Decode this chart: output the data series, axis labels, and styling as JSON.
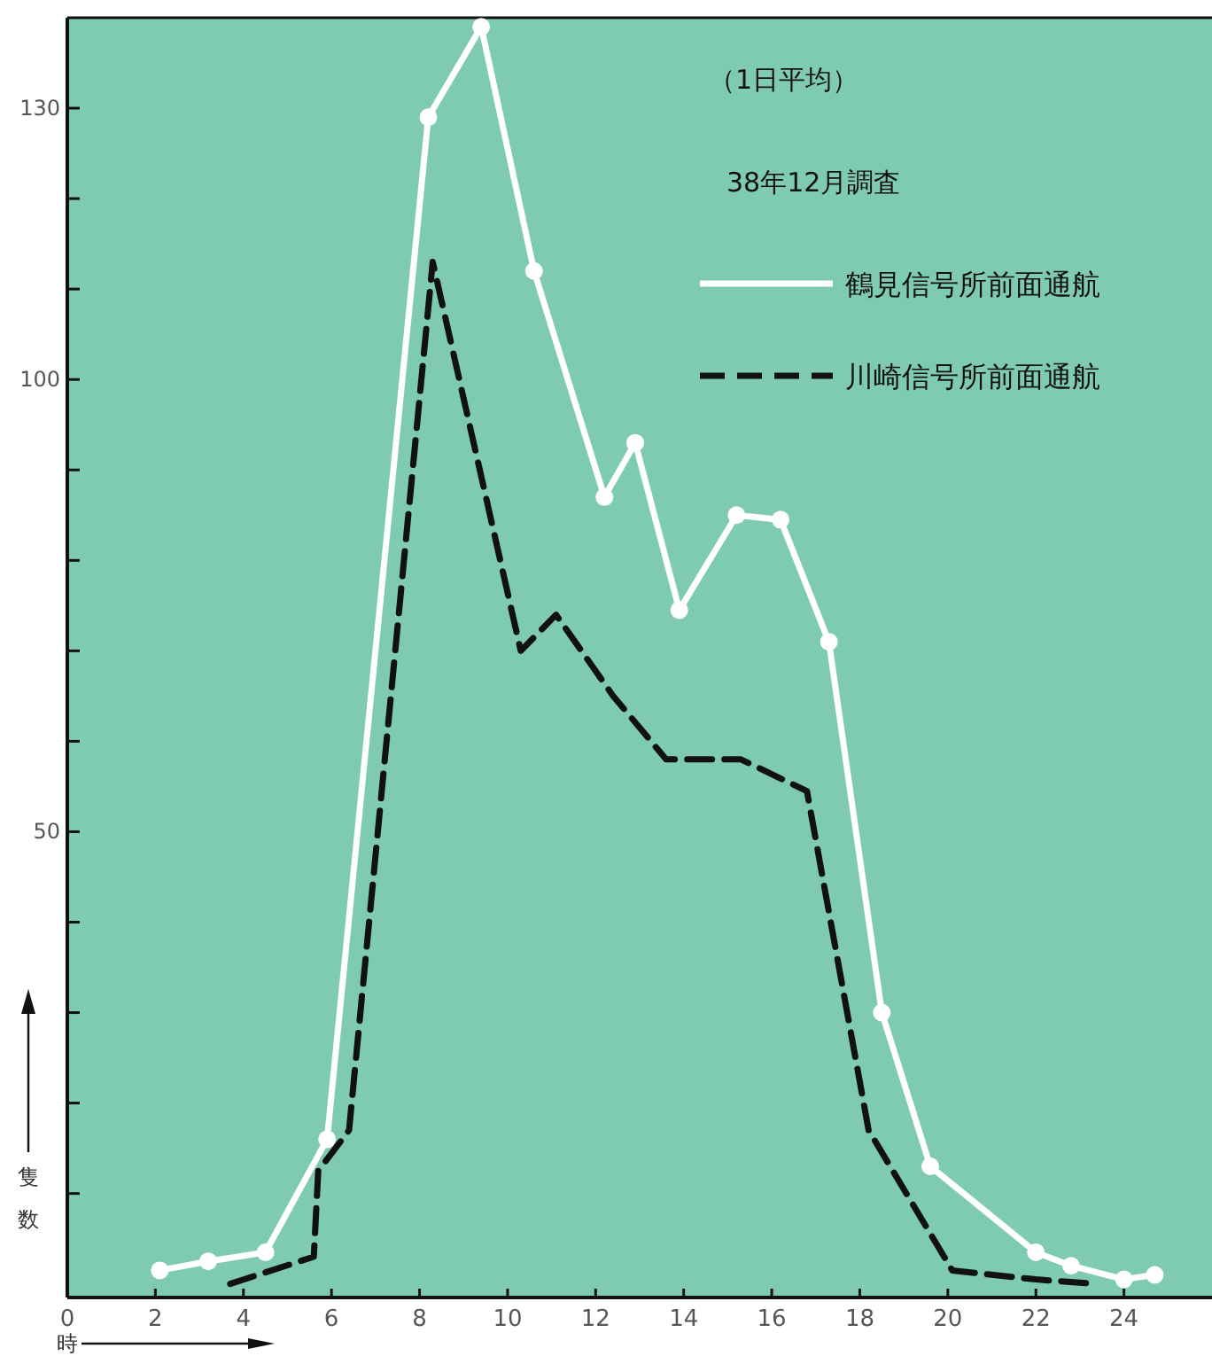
{
  "chart_data": {
    "type": "line",
    "xlabel": "時",
    "ylabel": "隻数",
    "annotations": [
      "（1日平均）",
      "38年12月調査"
    ],
    "xlim": [
      0,
      26
    ],
    "ylim": [
      -1.5,
      140
    ],
    "xticks": [
      0,
      2,
      4,
      6,
      8,
      10,
      12,
      14,
      16,
      18,
      20,
      22,
      24
    ],
    "yticks": [
      {
        "value": 10,
        "label": null
      },
      {
        "value": 20,
        "label": null
      },
      {
        "value": 30,
        "label": null
      },
      {
        "value": 40,
        "label": null
      },
      50,
      {
        "value": 60,
        "label": null
      },
      {
        "value": 70,
        "label": null
      },
      {
        "value": 80,
        "label": null
      },
      {
        "value": 90,
        "label": null
      },
      100,
      {
        "value": 110,
        "label": null
      },
      {
        "value": 120,
        "label": null
      },
      130
    ],
    "legend": "top right",
    "grid": false,
    "series": [
      {
        "name": "鶴見信号所前面通航",
        "color": "#ffffff",
        "marker": "circle",
        "line_style": "solid",
        "x": [
          2.1,
          3.2,
          4.5,
          5.9,
          8.2,
          9.4,
          10.6,
          12.2,
          12.9,
          13.9,
          15.2,
          16.2,
          17.3,
          18.5,
          19.6,
          22,
          22.8,
          24,
          24.7
        ],
        "values": [
          1.5,
          2.5,
          3.5,
          16,
          129,
          139,
          112,
          87,
          93,
          74.5,
          85,
          84.5,
          71,
          30,
          13,
          3.5,
          2,
          0.5,
          1
        ]
      },
      {
        "name": "川崎信号所前面通航",
        "color": "#111111",
        "marker": "none",
        "line_style": "dashed",
        "x": [
          3.7,
          5.6,
          5.7,
          6.4,
          8.3,
          10.3,
          11.1,
          12.4,
          13.6,
          15.3,
          16.8,
          18.2,
          20.1,
          22,
          23.4
        ],
        "values": [
          0,
          3,
          12.5,
          17,
          113,
          70,
          74,
          65,
          58,
          58,
          54.5,
          17,
          1.5,
          0.5,
          0
        ]
      }
    ]
  }
}
